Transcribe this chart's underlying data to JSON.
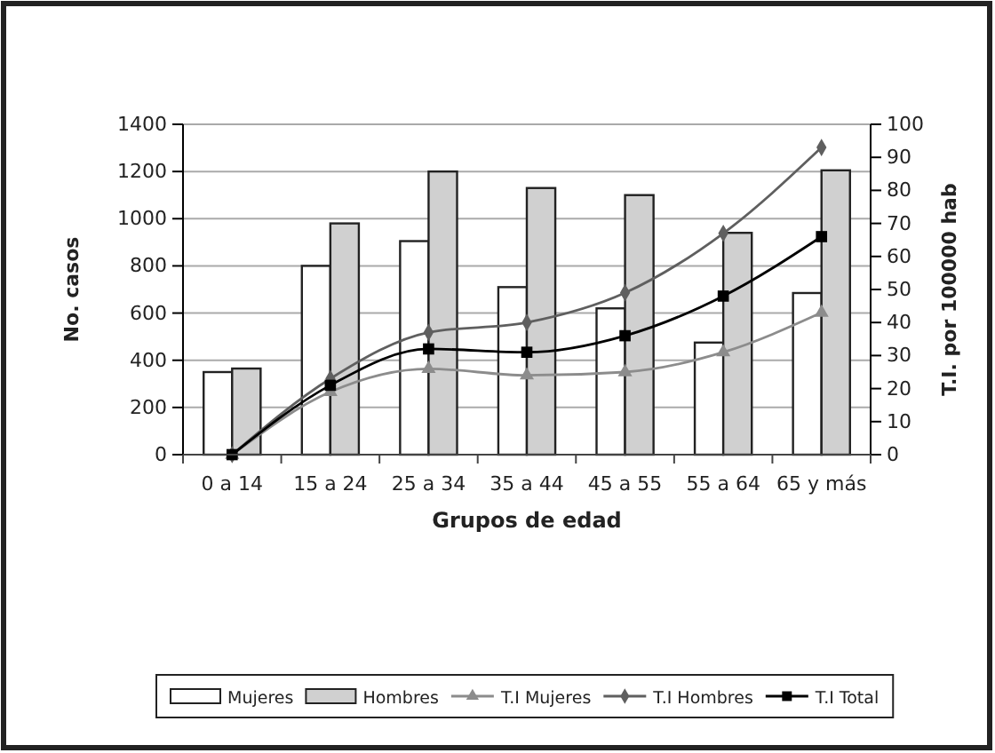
{
  "chart_data": {
    "type": "bar",
    "xlabel": "Grupos de edad",
    "ylabel": "No. casos",
    "y2label": "T.I. por 100000 hab",
    "categories": [
      "0 a 14",
      "15 a 24",
      "25 a 34",
      "35 a 44",
      "45 a 55",
      "55 a 64",
      "65 y más"
    ],
    "series": [
      {
        "name": "Mujeres",
        "color": "#ffffff",
        "values": [
          350,
          800,
          905,
          710,
          620,
          475,
          685
        ]
      },
      {
        "name": "Hombres",
        "color": "#d0d0d0",
        "values": [
          365,
          980,
          1200,
          1130,
          1100,
          940,
          1205
        ]
      },
      {
        "name": "T.I Mujeres",
        "type": "line",
        "axis": "y2",
        "marker": "triangle",
        "color": "#8c8c8c",
        "values": [
          0,
          19,
          26,
          24,
          25,
          31,
          43
        ]
      },
      {
        "name": "T.I Hombres",
        "type": "line",
        "axis": "y2",
        "marker": "diamond",
        "color": "#5f5f5f",
        "values": [
          0,
          23,
          37,
          40,
          49,
          67,
          93
        ]
      },
      {
        "name": "T.I Total",
        "type": "line",
        "axis": "y2",
        "marker": "square",
        "color": "#000000",
        "values": [
          0,
          21,
          32,
          31,
          36,
          48,
          66
        ]
      }
    ],
    "ylim": [
      0,
      1400
    ],
    "yticks": [
      0,
      200,
      400,
      600,
      800,
      1000,
      1200,
      1400
    ],
    "y2lim": [
      0,
      100
    ],
    "y2ticks": [
      0,
      10,
      20,
      30,
      40,
      50,
      60,
      70,
      80,
      90,
      100
    ],
    "grid": "y",
    "legend": "bottom",
    "line_style": "solid"
  }
}
